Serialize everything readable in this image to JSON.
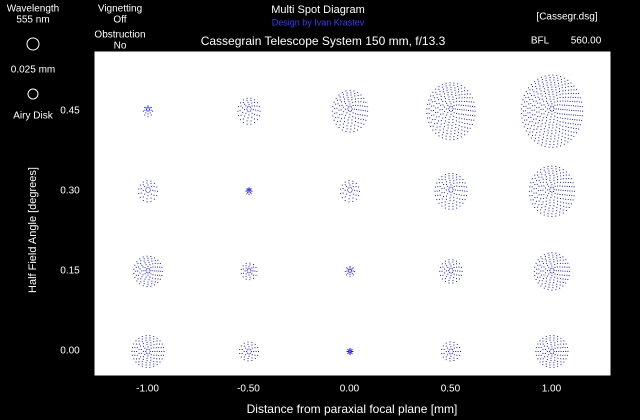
{
  "chart_data": {
    "type": "spot",
    "title": "Multi Spot Diagram",
    "credit": "Design by Ivan Krastev",
    "subtitle": "Cassegrain Telescope System 150 mm, f/13.3",
    "file": "[Cassegr.dsg]",
    "bfl_label": "BFL",
    "bfl_value": "560.00",
    "wavelength_label": "Wavelength",
    "wavelength_value": "555 nm",
    "vignetting_label": "Vignetting",
    "vignetting_value": "Off",
    "obstruction_label": "Obstruction",
    "obstruction_value": "No",
    "scale_label": "0.025 mm",
    "airy_label": "Airy Disk",
    "x_label": "Distance from paraxial focal plane [mm]",
    "y_label": "Half Field Angle [degrees]",
    "xlim": [
      -1.26,
      1.29
    ],
    "ylim": [
      -0.045,
      0.56
    ],
    "xticks": [
      {
        "value": -1,
        "label": "-1.00"
      },
      {
        "value": -0.5,
        "label": "-0.50"
      },
      {
        "value": 0,
        "label": "0.00"
      },
      {
        "value": 0.5,
        "label": "0.50"
      },
      {
        "value": 1,
        "label": "1.00"
      }
    ],
    "yticks": [
      {
        "value": 0,
        "label": "0.00"
      },
      0.15,
      {
        "value": 0.3,
        "label": "0.30"
      },
      0.45
    ],
    "color": "#1414ff"
  }
}
